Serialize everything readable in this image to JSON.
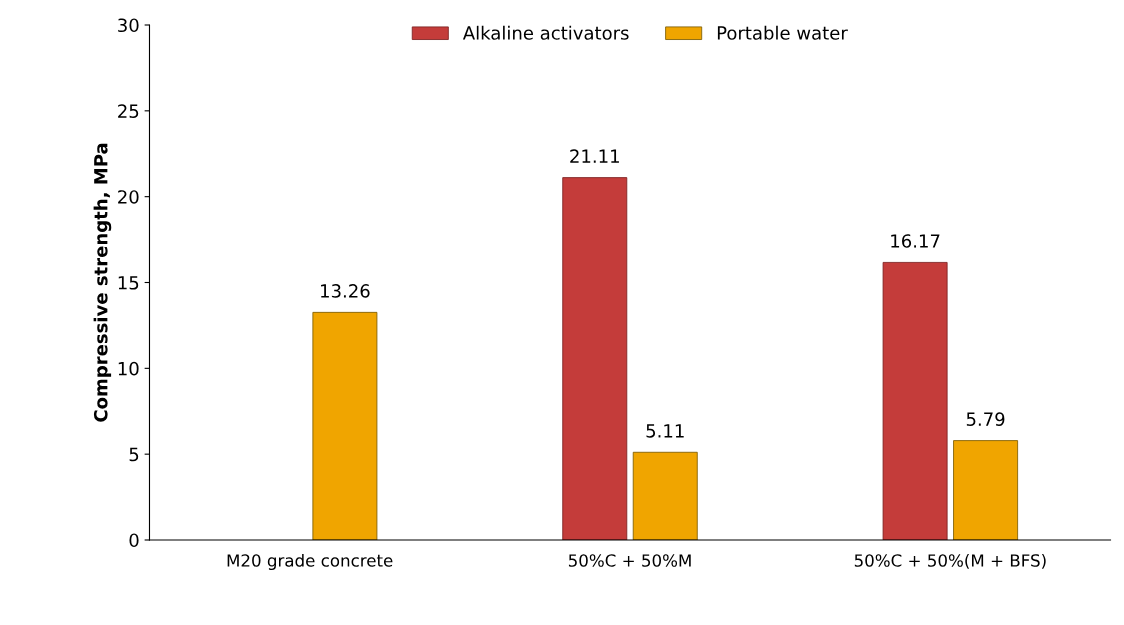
{
  "chart_data": {
    "type": "bar",
    "ylabel": "Compressive strength, MPa",
    "categories": [
      "M20 grade concrete",
      "50%C + 50%M",
      "50%C + 50%(M + BFS)"
    ],
    "series": [
      {
        "name": "Alkaline activators",
        "color": "#c43c3a",
        "values": [
          null,
          21.11,
          16.17
        ]
      },
      {
        "name": "Portable water",
        "color": "#f0a500",
        "values": [
          13.26,
          5.11,
          5.79
        ]
      }
    ],
    "ylim": [
      0,
      30
    ],
    "yticks": [
      0,
      5,
      10,
      15,
      20,
      25,
      30
    ],
    "data_labels": true,
    "legend": "top",
    "grid": false
  }
}
